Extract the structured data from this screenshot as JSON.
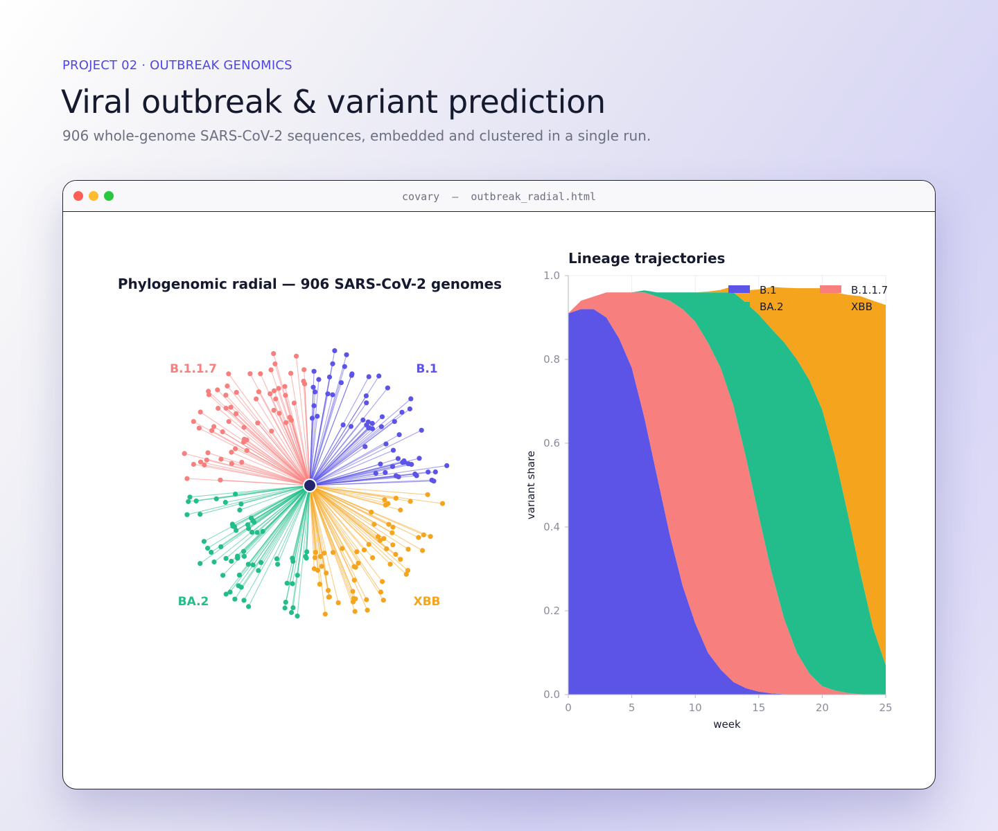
{
  "header": {
    "eyebrow": "PROJECT 02 · OUTBREAK GENOMICS",
    "title": "Viral outbreak & variant prediction",
    "subtitle": "906 whole-genome SARS-CoV-2 sequences, embedded and clustered in a single run."
  },
  "window": {
    "title": "covary  —  outbreak_radial.html"
  },
  "colors": {
    "B.1": "#5b54e6",
    "B.1.1.7": "#f77f7d",
    "BA.2": "#22bd8a",
    "XBB": "#f5a41e",
    "root": "#23266e"
  },
  "chart_data": [
    {
      "type": "scatter",
      "title": "Phylogenomic radial — 906 SARS-CoV-2 genomes",
      "clusters": [
        {
          "name": "B.1",
          "direction": "upper-right"
        },
        {
          "name": "B.1.1.7",
          "direction": "upper-left"
        },
        {
          "name": "BA.2",
          "direction": "lower-left"
        },
        {
          "name": "XBB",
          "direction": "lower-right"
        }
      ],
      "grid": false
    },
    {
      "type": "area",
      "title": "Lineage trajectories",
      "xlabel": "week",
      "ylabel": "variant share",
      "xlim": [
        0,
        25
      ],
      "ylim": [
        0,
        1
      ],
      "xticks": [
        0,
        5,
        10,
        15,
        20,
        25
      ],
      "yticks": [
        0.0,
        0.2,
        0.4,
        0.6,
        0.8,
        1.0
      ],
      "tick_labels_y": [
        "0.0",
        "0.2",
        "0.4",
        "0.6",
        "0.8",
        "1.0"
      ],
      "legend_position": "top-right",
      "stacked": true,
      "x": [
        0,
        1,
        2,
        3,
        4,
        5,
        6,
        7,
        8,
        9,
        10,
        11,
        12,
        13,
        14,
        15,
        16,
        17,
        18,
        19,
        20,
        21,
        22,
        23,
        24,
        25
      ],
      "series": [
        {
          "name": "B.1",
          "values": [
            0.91,
            0.92,
            0.92,
            0.9,
            0.85,
            0.78,
            0.66,
            0.52,
            0.38,
            0.26,
            0.17,
            0.1,
            0.06,
            0.03,
            0.015,
            0.007,
            0.003,
            0.001,
            0,
            0,
            0,
            0,
            0,
            0,
            0,
            0
          ]
        },
        {
          "name": "B.1.1.7",
          "values": [
            0,
            0.02,
            0.03,
            0.06,
            0.11,
            0.18,
            0.3,
            0.43,
            0.56,
            0.66,
            0.72,
            0.74,
            0.72,
            0.66,
            0.55,
            0.42,
            0.29,
            0.18,
            0.1,
            0.05,
            0.02,
            0.01,
            0.004,
            0.001,
            0,
            0
          ]
        },
        {
          "name": "BA.2",
          "values": [
            0,
            0,
            0,
            0,
            0,
            0,
            0.005,
            0.01,
            0.02,
            0.04,
            0.07,
            0.12,
            0.18,
            0.27,
            0.37,
            0.48,
            0.58,
            0.66,
            0.7,
            0.7,
            0.66,
            0.56,
            0.43,
            0.29,
            0.16,
            0.07
          ]
        },
        {
          "name": "XBB",
          "values": [
            0,
            0,
            0,
            0,
            0,
            0,
            0,
            0,
            0,
            0,
            0,
            0.002,
            0.006,
            0.015,
            0.03,
            0.06,
            0.1,
            0.13,
            0.17,
            0.22,
            0.29,
            0.39,
            0.52,
            0.66,
            0.78,
            0.86
          ]
        }
      ]
    }
  ]
}
